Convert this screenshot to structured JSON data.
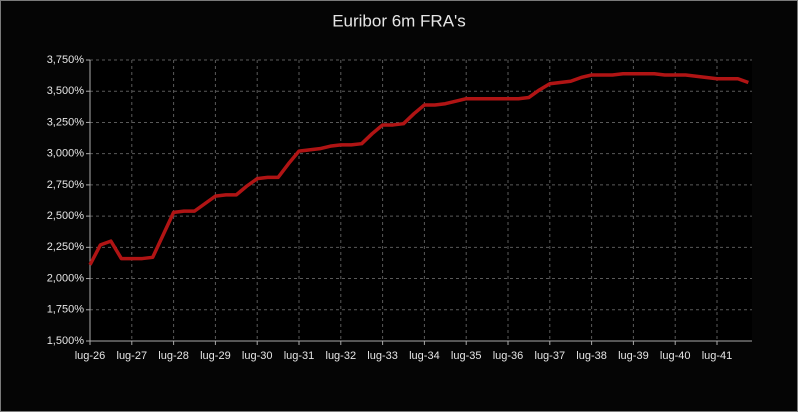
{
  "chart_data": {
    "type": "line",
    "title": "Euribor 6m FRA's",
    "categories": [
      "lug-26",
      null,
      null,
      null,
      "lug-27",
      null,
      null,
      null,
      "lug-28",
      null,
      null,
      null,
      "lug-29",
      null,
      null,
      null,
      "lug-30",
      null,
      null,
      null,
      "lug-31",
      null,
      null,
      null,
      "lug-32",
      null,
      null,
      null,
      "lug-33",
      null,
      null,
      null,
      "lug-34",
      null,
      null,
      null,
      "lug-35",
      null,
      null,
      null,
      "lug-36",
      null,
      null,
      null,
      "lug-37",
      null,
      null,
      null,
      "lug-38",
      null,
      null,
      null,
      "lug-39",
      null,
      null,
      null,
      "lug-40",
      null,
      null,
      null,
      "lug-41",
      null,
      null,
      null
    ],
    "series": [
      {
        "color": "#b01414",
        "values": [
          2.11,
          2.27,
          2.3,
          2.16,
          2.16,
          2.16,
          2.17,
          2.35,
          2.53,
          2.54,
          2.54,
          2.6,
          2.66,
          2.67,
          2.67,
          2.74,
          2.8,
          2.81,
          2.81,
          2.92,
          3.02,
          3.03,
          3.04,
          3.06,
          3.07,
          3.07,
          3.08,
          3.16,
          3.23,
          3.23,
          3.24,
          3.32,
          3.39,
          3.39,
          3.4,
          3.42,
          3.44,
          3.44,
          3.44,
          3.44,
          3.44,
          3.44,
          3.45,
          3.51,
          3.56,
          3.57,
          3.58,
          3.61,
          3.63,
          3.63,
          3.63,
          3.64,
          3.64,
          3.64,
          3.64,
          3.63,
          3.63,
          3.63,
          3.62,
          3.61,
          3.6,
          3.6,
          3.6,
          3.57
        ]
      }
    ],
    "ylim": [
      1.5,
      3.75
    ],
    "yticks": [
      {
        "value": 1.5,
        "label": "1,500%"
      },
      {
        "value": 1.75,
        "label": "1,750%"
      },
      {
        "value": 2,
        "label": "2,000%"
      },
      {
        "value": 2.25,
        "label": "2,250%"
      },
      {
        "value": 2.5,
        "label": "2,500%"
      },
      {
        "value": 2.75,
        "label": "2,750%"
      },
      {
        "value": 3,
        "label": "3,000%"
      },
      {
        "value": 3.25,
        "label": "3,250%"
      },
      {
        "value": 3.5,
        "label": "3,500%"
      },
      {
        "value": 3.75,
        "label": "3,750%"
      }
    ],
    "grid": true
  }
}
